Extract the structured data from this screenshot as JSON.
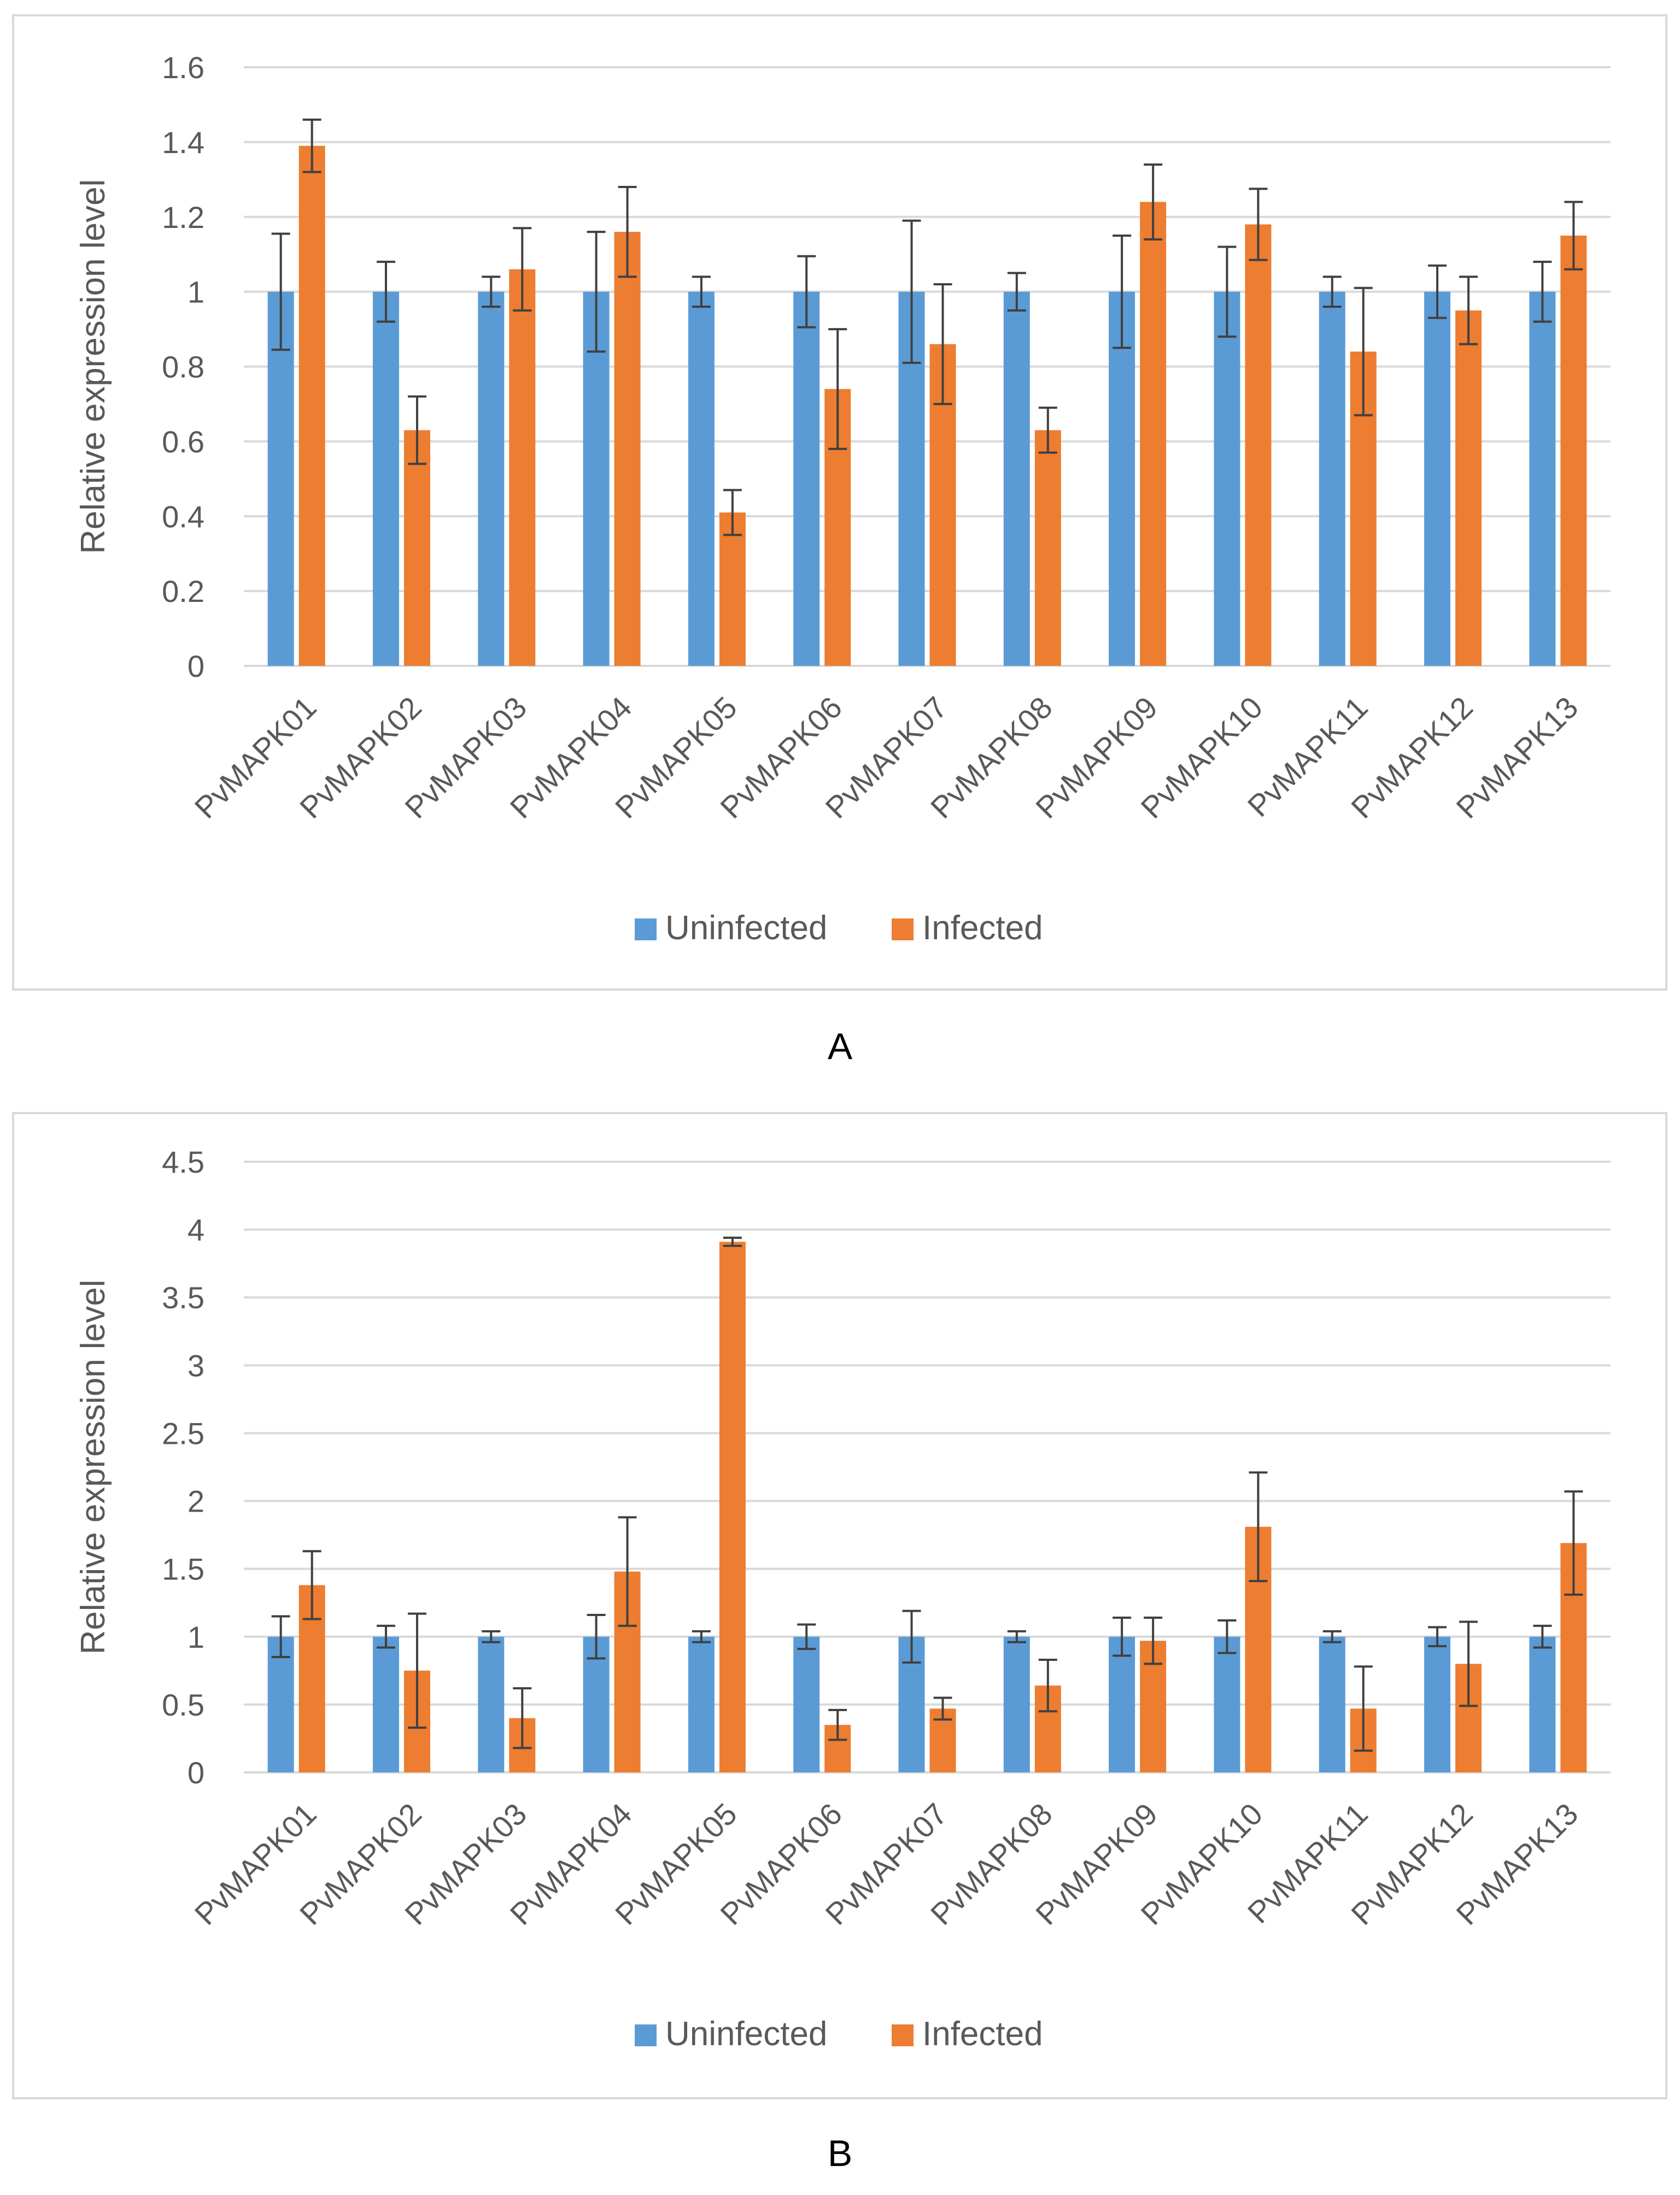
{
  "panel_labels": [
    "A",
    "B"
  ],
  "colors": {
    "uninfected": "#5b9bd5",
    "infected": "#ed7d31",
    "grid": "#d9d9d9",
    "axis_text": "#595959",
    "error_bar": "#404040"
  },
  "chart_data": [
    {
      "type": "bar",
      "ylabel": "Relative expression level",
      "ylim": [
        0,
        1.6
      ],
      "yticks": [
        "0",
        "0.2",
        "0.4",
        "0.6",
        "0.8",
        "1",
        "1.2",
        "1.4",
        "1.6"
      ],
      "categories": [
        "PvMAPK01",
        "PvMAPK02",
        "PvMAPK03",
        "PvMAPK04",
        "PvMAPK05",
        "PvMAPK06",
        "PvMAPK07",
        "PvMAPK08",
        "PvMAPK09",
        "PvMAPK10",
        "PvMAPK11",
        "PvMAPK12",
        "PvMAPK13"
      ],
      "series": [
        {
          "name": "Uninfected",
          "values": [
            1,
            1,
            1,
            1,
            1,
            1,
            1,
            1,
            1,
            1,
            1,
            1,
            1
          ],
          "errors": [
            0.155,
            0.08,
            0.04,
            0.16,
            0.04,
            0.095,
            0.19,
            0.05,
            0.15,
            0.12,
            0.04,
            0.07,
            0.08
          ]
        },
        {
          "name": "Infected",
          "values": [
            1.39,
            0.63,
            1.06,
            1.16,
            0.41,
            0.74,
            0.86,
            0.63,
            1.24,
            1.18,
            0.84,
            0.95,
            1.15
          ],
          "errors": [
            0.07,
            0.09,
            0.11,
            0.12,
            0.06,
            0.16,
            0.16,
            0.06,
            0.1,
            0.095,
            0.17,
            0.09,
            0.09
          ]
        }
      ],
      "legend": "bottom",
      "grid": true
    },
    {
      "type": "bar",
      "ylabel": "Relative expression level",
      "ylim": [
        0,
        4.5
      ],
      "yticks": [
        "0",
        "0.5",
        "1",
        "1.5",
        "2",
        "2.5",
        "3",
        "3.5",
        "4",
        "4.5"
      ],
      "categories": [
        "PvMAPK01",
        "PvMAPK02",
        "PvMAPK03",
        "PvMAPK04",
        "PvMAPK05",
        "PvMAPK06",
        "PvMAPK07",
        "PvMAPK08",
        "PvMAPK09",
        "PvMAPK10",
        "PvMAPK11",
        "PvMAPK12",
        "PvMAPK13"
      ],
      "series": [
        {
          "name": "Uninfected",
          "values": [
            1,
            1,
            1,
            1,
            1,
            1,
            1,
            1,
            1,
            1,
            1,
            1,
            1
          ],
          "errors": [
            0.15,
            0.08,
            0.04,
            0.16,
            0.04,
            0.09,
            0.19,
            0.04,
            0.14,
            0.12,
            0.04,
            0.07,
            0.08
          ]
        },
        {
          "name": "Infected",
          "values": [
            1.38,
            0.75,
            0.4,
            1.48,
            3.91,
            0.35,
            0.47,
            0.64,
            0.97,
            1.81,
            0.47,
            0.8,
            1.69
          ],
          "errors": [
            0.25,
            0.42,
            0.22,
            0.4,
            0.03,
            0.11,
            0.08,
            0.19,
            0.17,
            0.4,
            0.31,
            0.31,
            0.38
          ]
        }
      ],
      "legend": "bottom",
      "grid": true
    }
  ]
}
